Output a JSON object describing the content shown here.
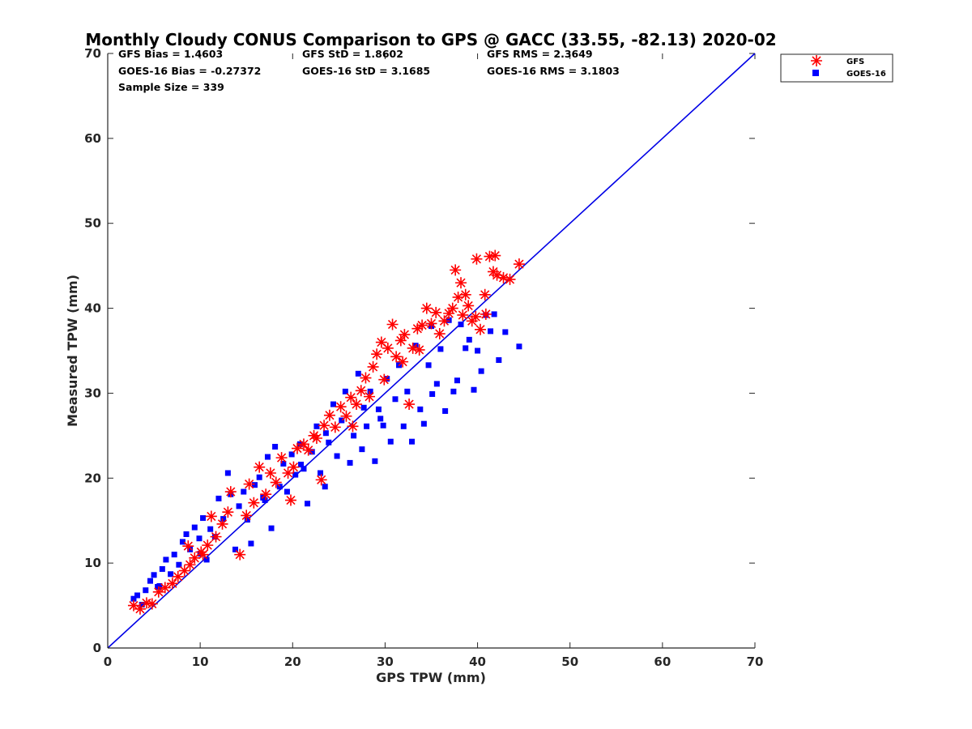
{
  "chart_data": {
    "type": "scatter",
    "title": "Monthly Cloudy CONUS Comparison to GPS @ GACC (33.55, -82.13) 2020-02",
    "xlabel": "GPS TPW (mm)",
    "ylabel": "Measured TPW (mm)",
    "xlim": [
      0,
      70
    ],
    "ylim": [
      0,
      70
    ],
    "xticks": [
      "0",
      "10",
      "20",
      "30",
      "40",
      "50",
      "60",
      "70"
    ],
    "yticks": [
      "0",
      "10",
      "20",
      "30",
      "40",
      "50",
      "60",
      "70"
    ],
    "legend_position": "top-right (outside plot)",
    "stats": {
      "gfs_bias": "GFS Bias = 1.4603",
      "gfs_std": "GFS StD = 1.8602",
      "gfs_rms": "GFS RMS = 2.3649",
      "goes_bias": "GOES-16 Bias = -0.27372",
      "goes_std": "GOES-16 StD = 3.1685",
      "goes_rms": "GOES-16 RMS = 3.1803",
      "sample_size": "Sample Size = 339"
    },
    "reference_line": {
      "x": [
        0,
        70
      ],
      "y": [
        0,
        70
      ],
      "color": "#0000e6"
    },
    "series": [
      {
        "name": "GFS",
        "marker": "asterisk",
        "color": "#ff0000",
        "points": [
          [
            2.8,
            5.0
          ],
          [
            3.5,
            4.6
          ],
          [
            4.2,
            5.3
          ],
          [
            4.8,
            5.2
          ],
          [
            5.5,
            6.6
          ],
          [
            6.2,
            7.1
          ],
          [
            7.0,
            7.6
          ],
          [
            7.6,
            8.4
          ],
          [
            8.3,
            9.1
          ],
          [
            8.9,
            9.8
          ],
          [
            9.4,
            10.6
          ],
          [
            10.1,
            11.3
          ],
          [
            10.8,
            12.1
          ],
          [
            11.2,
            15.5
          ],
          [
            11.7,
            13.1
          ],
          [
            12.4,
            14.6
          ],
          [
            13.0,
            16.0
          ],
          [
            13.3,
            18.4
          ],
          [
            14.3,
            11.0
          ],
          [
            15.0,
            15.6
          ],
          [
            15.3,
            19.3
          ],
          [
            15.8,
            17.1
          ],
          [
            16.4,
            21.3
          ],
          [
            17.1,
            18.1
          ],
          [
            17.6,
            20.6
          ],
          [
            18.2,
            19.5
          ],
          [
            18.8,
            22.4
          ],
          [
            19.5,
            20.6
          ],
          [
            20.1,
            21.3
          ],
          [
            20.5,
            23.5
          ],
          [
            21.2,
            24.0
          ],
          [
            21.7,
            23.3
          ],
          [
            22.3,
            25.0
          ],
          [
            23.1,
            19.8
          ],
          [
            23.4,
            26.2
          ],
          [
            24.0,
            27.4
          ],
          [
            24.6,
            26.0
          ],
          [
            25.2,
            28.4
          ],
          [
            25.8,
            27.3
          ],
          [
            26.3,
            29.5
          ],
          [
            26.9,
            28.7
          ],
          [
            27.4,
            30.3
          ],
          [
            27.9,
            31.8
          ],
          [
            28.3,
            29.6
          ],
          [
            28.7,
            33.1
          ],
          [
            29.1,
            34.6
          ],
          [
            29.6,
            36.0
          ],
          [
            29.9,
            31.6
          ],
          [
            30.3,
            35.3
          ],
          [
            30.8,
            38.1
          ],
          [
            31.2,
            34.3
          ],
          [
            31.7,
            36.2
          ],
          [
            32.1,
            36.9
          ],
          [
            32.6,
            28.7
          ],
          [
            33.0,
            35.3
          ],
          [
            33.5,
            37.6
          ],
          [
            34.0,
            38.0
          ],
          [
            34.5,
            40.0
          ],
          [
            35.0,
            38.2
          ],
          [
            35.5,
            39.5
          ],
          [
            35.9,
            37.0
          ],
          [
            36.4,
            38.5
          ],
          [
            36.9,
            39.4
          ],
          [
            37.3,
            40.0
          ],
          [
            37.6,
            44.5
          ],
          [
            37.9,
            41.3
          ],
          [
            38.2,
            43.0
          ],
          [
            38.4,
            39.2
          ],
          [
            38.7,
            41.6
          ],
          [
            39.0,
            40.3
          ],
          [
            39.4,
            38.5
          ],
          [
            39.8,
            39.0
          ],
          [
            40.3,
            37.5
          ],
          [
            40.8,
            41.6
          ],
          [
            40.9,
            39.3
          ],
          [
            41.3,
            46.1
          ],
          [
            41.7,
            44.3
          ],
          [
            42.1,
            43.9
          ],
          [
            42.8,
            43.6
          ],
          [
            43.5,
            43.4
          ],
          [
            44.5,
            45.2
          ],
          [
            41.9,
            46.2
          ],
          [
            39.9,
            45.8
          ],
          [
            22.6,
            24.7
          ],
          [
            26.5,
            26.1
          ],
          [
            31.9,
            33.7
          ],
          [
            33.7,
            35.1
          ],
          [
            19.8,
            17.4
          ],
          [
            8.7,
            12.0
          ],
          [
            10.3,
            11.0
          ]
        ]
      },
      {
        "name": "GOES-16",
        "marker": "square",
        "color": "#0000ff",
        "points": [
          [
            2.8,
            5.8
          ],
          [
            3.2,
            6.2
          ],
          [
            3.7,
            5.1
          ],
          [
            4.1,
            6.8
          ],
          [
            4.6,
            7.9
          ],
          [
            5.0,
            8.6
          ],
          [
            5.4,
            7.2
          ],
          [
            5.9,
            9.3
          ],
          [
            6.3,
            10.4
          ],
          [
            6.8,
            8.7
          ],
          [
            7.2,
            11.0
          ],
          [
            7.7,
            9.8
          ],
          [
            8.1,
            12.5
          ],
          [
            8.5,
            13.4
          ],
          [
            8.9,
            11.6
          ],
          [
            9.4,
            14.2
          ],
          [
            9.9,
            12.9
          ],
          [
            10.3,
            15.3
          ],
          [
            10.7,
            10.4
          ],
          [
            11.1,
            14.0
          ],
          [
            11.6,
            13.1
          ],
          [
            12.0,
            17.6
          ],
          [
            12.5,
            15.2
          ],
          [
            13.0,
            20.6
          ],
          [
            13.3,
            18.1
          ],
          [
            13.8,
            11.6
          ],
          [
            14.2,
            16.7
          ],
          [
            14.7,
            18.4
          ],
          [
            15.1,
            15.1
          ],
          [
            15.5,
            12.3
          ],
          [
            15.9,
            19.2
          ],
          [
            16.4,
            20.1
          ],
          [
            16.8,
            17.7
          ],
          [
            17.3,
            22.5
          ],
          [
            17.7,
            14.1
          ],
          [
            18.1,
            23.7
          ],
          [
            18.6,
            19.0
          ],
          [
            19.0,
            21.7
          ],
          [
            19.4,
            18.4
          ],
          [
            19.9,
            22.8
          ],
          [
            20.3,
            20.4
          ],
          [
            20.8,
            24.0
          ],
          [
            21.2,
            21.1
          ],
          [
            21.6,
            17.0
          ],
          [
            22.1,
            23.1
          ],
          [
            22.6,
            26.1
          ],
          [
            23.0,
            20.6
          ],
          [
            23.5,
            19.0
          ],
          [
            23.9,
            24.2
          ],
          [
            24.4,
            28.7
          ],
          [
            24.8,
            22.6
          ],
          [
            25.3,
            26.8
          ],
          [
            25.7,
            30.2
          ],
          [
            26.2,
            21.8
          ],
          [
            26.6,
            25.0
          ],
          [
            27.1,
            32.3
          ],
          [
            27.5,
            23.4
          ],
          [
            28.0,
            26.1
          ],
          [
            28.4,
            30.2
          ],
          [
            28.9,
            22.0
          ],
          [
            29.3,
            28.1
          ],
          [
            29.8,
            26.2
          ],
          [
            30.2,
            31.7
          ],
          [
            30.6,
            24.3
          ],
          [
            31.1,
            29.3
          ],
          [
            31.5,
            33.3
          ],
          [
            32.0,
            26.1
          ],
          [
            32.4,
            30.2
          ],
          [
            32.9,
            24.3
          ],
          [
            33.3,
            35.6
          ],
          [
            33.8,
            28.1
          ],
          [
            34.2,
            26.4
          ],
          [
            34.7,
            33.3
          ],
          [
            35.1,
            29.9
          ],
          [
            35.6,
            31.1
          ],
          [
            36.0,
            35.2
          ],
          [
            36.5,
            27.9
          ],
          [
            36.9,
            38.6
          ],
          [
            37.4,
            30.2
          ],
          [
            37.8,
            31.5
          ],
          [
            38.2,
            38.1
          ],
          [
            38.7,
            35.3
          ],
          [
            39.1,
            36.3
          ],
          [
            39.6,
            30.4
          ],
          [
            40.0,
            35.0
          ],
          [
            40.4,
            32.6
          ],
          [
            40.9,
            39.2
          ],
          [
            41.4,
            37.3
          ],
          [
            41.8,
            39.3
          ],
          [
            42.3,
            33.9
          ],
          [
            43.0,
            37.2
          ],
          [
            44.5,
            35.5
          ],
          [
            23.6,
            25.3
          ],
          [
            17.0,
            17.4
          ],
          [
            10.0,
            11.1
          ],
          [
            5.6,
            7.3
          ],
          [
            29.5,
            27.0
          ],
          [
            35.0,
            37.9
          ],
          [
            27.7,
            28.3
          ],
          [
            20.9,
            21.6
          ]
        ]
      }
    ]
  }
}
